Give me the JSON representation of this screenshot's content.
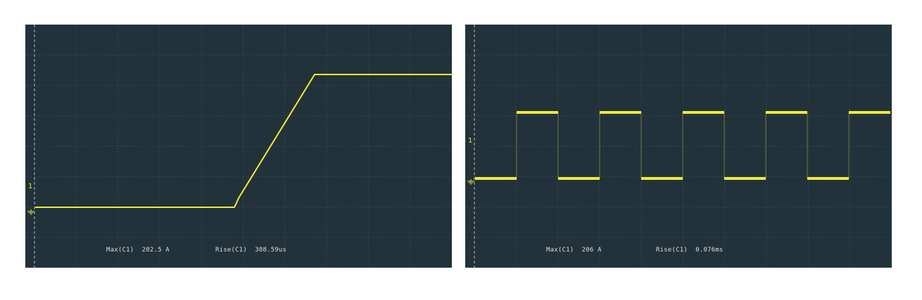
{
  "colors": {
    "background": "#22323a",
    "trace": "#f0ea3a",
    "grid": "#4a5a60",
    "text": "#dcdcdc"
  },
  "screens": [
    {
      "id": "left",
      "channel_marker": "1",
      "measurements": {
        "max_label": "Max(C1)",
        "max_value": "202.5 A",
        "rise_label": "Rise(C1)",
        "rise_value": "308.59us"
      },
      "waveform": "ramp step"
    },
    {
      "id": "right",
      "channel_marker": "1",
      "measurements": {
        "max_label": "Max(C1)",
        "max_value": "206 A",
        "rise_label": "Rise(C1)",
        "rise_value": "0.076ms"
      },
      "waveform": "square wave"
    }
  ]
}
